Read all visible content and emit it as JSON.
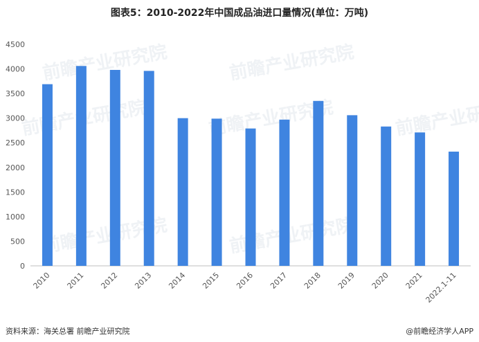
{
  "title": "图表5：2010-2022年中国成品油进口量情况(单位：万吨)",
  "source": "资料来源：海关总署 前瞻产业研究院",
  "brand": "@前瞻经济学人APP",
  "watermark": "前瞻产业研究院",
  "colors": {
    "bar": "#3f84e0",
    "axis": "#bfbfbf",
    "text": "#555555"
  },
  "chart_data": {
    "type": "bar",
    "title": "图表5：2010-2022年中国成品油进口量情况(单位：万吨)",
    "categories": [
      "2010",
      "2011",
      "2012",
      "2013",
      "2014",
      "2015",
      "2016",
      "2017",
      "2018",
      "2019",
      "2020",
      "2021",
      "2022.1-11"
    ],
    "values": [
      3690,
      4060,
      3980,
      3960,
      3000,
      2990,
      2790,
      2970,
      3350,
      3060,
      2830,
      2710,
      2320
    ],
    "yticks": [
      0,
      500,
      1000,
      1500,
      2000,
      2500,
      3000,
      3500,
      4000,
      4500
    ],
    "ylim": [
      0,
      4500
    ],
    "grid": false,
    "legend": "none"
  }
}
